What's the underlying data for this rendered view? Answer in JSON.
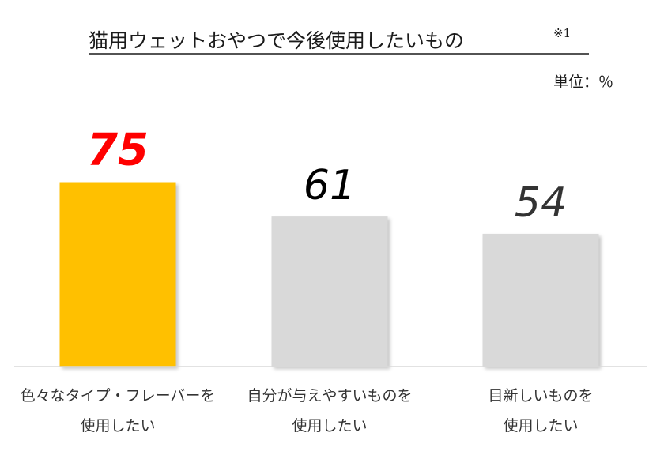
{
  "chart_data": {
    "type": "bar",
    "title": "猫用ウェットおやつで今後使用したいもの",
    "title_note": "※1",
    "unit_label": "単位：％",
    "categories": [
      [
        "色々なタイプ・フレーバーを",
        "使用したい"
      ],
      [
        "自分が与えやすいものを",
        "使用したい"
      ],
      [
        "目新しいものを",
        "使用したい"
      ]
    ],
    "values": [
      75,
      61,
      54
    ],
    "bar_colors": [
      "#FFC000",
      "#D9D9D9",
      "#D9D9D9"
    ],
    "value_label_colors": [
      "#FF0000",
      "#000000",
      "#333333"
    ],
    "highlight_index": 0,
    "ylim": [
      0,
      100
    ],
    "grid": false,
    "legend": "none",
    "xlabel": "",
    "ylabel": ""
  }
}
